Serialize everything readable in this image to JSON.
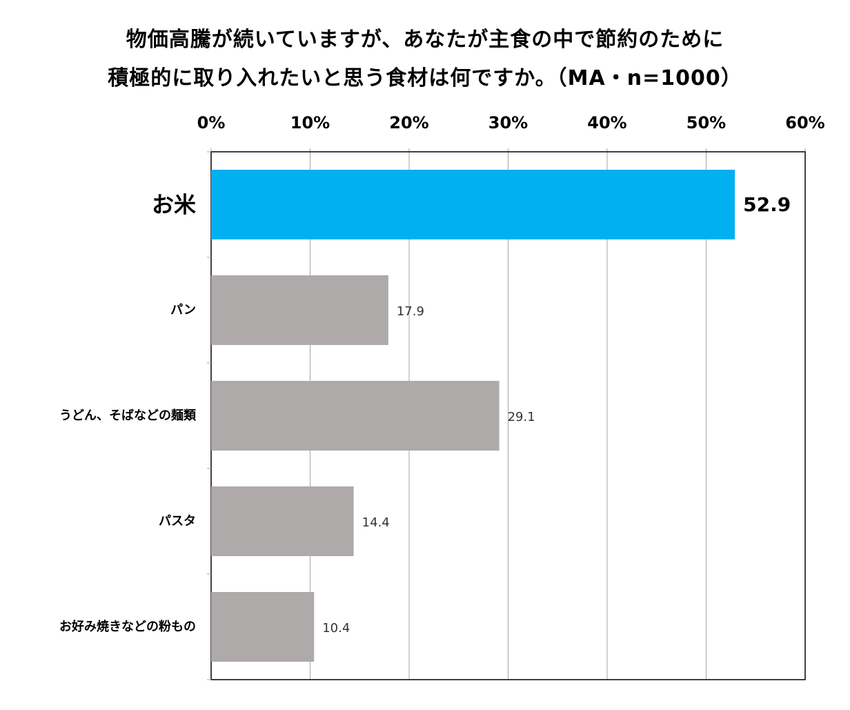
{
  "chart_data": {
    "type": "bar",
    "orientation": "horizontal",
    "title_lines": [
      "物価高騰が続いていますが、あなたが主食の中で節約のために",
      "積極的に取り入れたいと思う食材は何ですか。（MA・n=1000）"
    ],
    "xlabel": "",
    "ylabel": "",
    "xlim": [
      0,
      60
    ],
    "xticks": [
      "0%",
      "10%",
      "20%",
      "30%",
      "40%",
      "50%",
      "60%"
    ],
    "categories": [
      "お米",
      "パン",
      "うどん、そばなどの麺類",
      "パスタ",
      "お好み焼きなどの粉もの"
    ],
    "values": [
      52.9,
      17.9,
      29.1,
      14.4,
      10.4
    ],
    "value_labels": [
      "52.9",
      "17.9",
      "29.1",
      "14.4",
      "10.4"
    ],
    "highlight_index": 0,
    "grid": "vertical",
    "colors": {
      "highlight": "#00b0f0",
      "default": "#aeaaa9",
      "grid": "#a6a6a6",
      "axis": "#000000"
    }
  }
}
